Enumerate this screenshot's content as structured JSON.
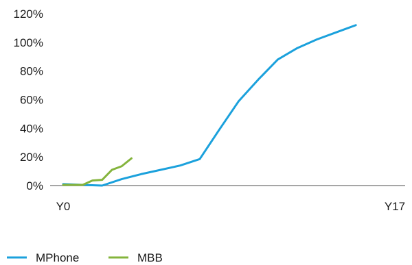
{
  "chart_data": {
    "type": "line",
    "title": "",
    "xlabel": "",
    "ylabel": "",
    "x_tick_labels": [
      {
        "x": 0,
        "label": "Y0"
      },
      {
        "x": 17,
        "label": "Y17"
      }
    ],
    "ylim": [
      0,
      1.2
    ],
    "xlim": [
      0,
      17
    ],
    "y_ticks": [
      {
        "value": 0,
        "label": "0%"
      },
      {
        "value": 0.2,
        "label": "20%"
      },
      {
        "value": 0.4,
        "label": "40%"
      },
      {
        "value": 0.6,
        "label": "60%"
      },
      {
        "value": 0.8,
        "label": "80%"
      },
      {
        "value": 1.0,
        "label": "100%"
      },
      {
        "value": 1.2,
        "label": "120%"
      }
    ],
    "grid": false,
    "legend_position": "bottom-left",
    "series": [
      {
        "name": "MPhone",
        "color": "#1ba1dc",
        "points": [
          [
            0,
            0.01
          ],
          [
            1,
            0.005
          ],
          [
            2,
            0.0
          ],
          [
            3,
            0.045
          ],
          [
            4,
            0.08
          ],
          [
            5,
            0.11
          ],
          [
            6,
            0.14
          ],
          [
            7,
            0.185
          ],
          [
            8,
            0.39
          ],
          [
            9,
            0.59
          ],
          [
            10,
            0.74
          ],
          [
            11,
            0.88
          ],
          [
            12,
            0.96
          ],
          [
            13,
            1.02
          ],
          [
            14,
            1.07
          ],
          [
            15,
            1.12
          ]
        ]
      },
      {
        "name": "MBB",
        "color": "#84b43c",
        "points": [
          [
            0,
            0.005
          ],
          [
            1,
            0.005
          ],
          [
            1.5,
            0.035
          ],
          [
            2,
            0.04
          ],
          [
            2.5,
            0.11
          ],
          [
            3,
            0.135
          ],
          [
            3.5,
            0.19
          ]
        ]
      }
    ]
  }
}
